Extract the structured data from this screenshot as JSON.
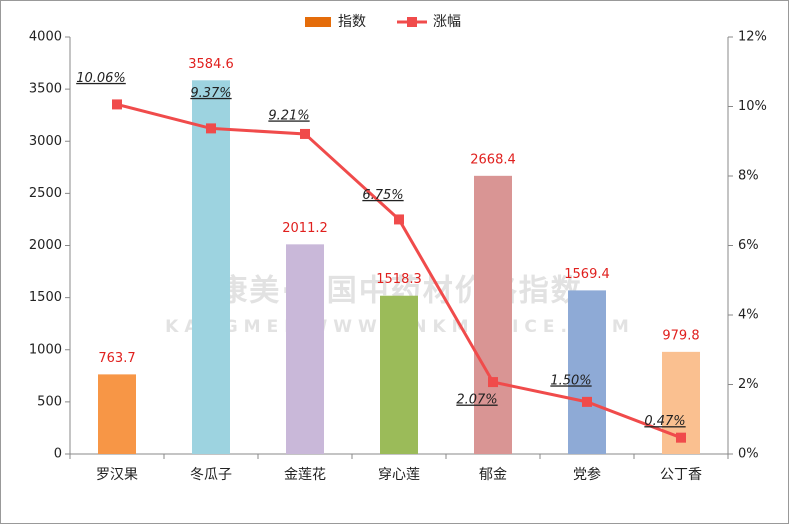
{
  "chart_data": {
    "type": "bar",
    "watermark": [
      "康美·中国中药材价格指数",
      "KANGMEI WWW.CNKMPRICE.COM"
    ],
    "categories": [
      "罗汉果",
      "冬瓜子",
      "金莲花",
      "穿心莲",
      "郁金",
      "党参",
      "公丁香"
    ],
    "series": [
      {
        "name": "指数",
        "type": "bar",
        "color": "#e46c0a",
        "colors": [
          "#f79646",
          "#9dd3e0",
          "#c9b8d9",
          "#9bbb59",
          "#d99594",
          "#8eaad6",
          "#fac090"
        ],
        "values": [
          763.7,
          3584.6,
          2011.2,
          1518.3,
          2668.4,
          1569.4,
          979.8
        ]
      },
      {
        "name": "涨幅",
        "type": "line",
        "axis": "y2",
        "color": "#f04b4b",
        "values": [
          10.06,
          9.37,
          9.21,
          6.75,
          2.07,
          1.5,
          0.47
        ],
        "value_labels": [
          "10.06%",
          "9.37%",
          "9.21%",
          "6.75%",
          "2.07%",
          "1.50%",
          "0.47%"
        ]
      }
    ],
    "ylim": [
      0,
      4000
    ],
    "yticks": [
      0,
      500,
      1000,
      1500,
      2000,
      2500,
      3000,
      3500,
      4000
    ],
    "y2lim": [
      0,
      12
    ],
    "y2ticks": [
      {
        "value": 0,
        "label": "0%"
      },
      {
        "value": 2,
        "label": "2%"
      },
      {
        "value": 4,
        "label": "4%"
      },
      {
        "value": 6,
        "label": "6%"
      },
      {
        "value": 8,
        "label": "8%"
      },
      {
        "value": 10,
        "label": "10%"
      },
      {
        "value": 12,
        "label": "12%"
      }
    ],
    "grid": false,
    "legend": "top"
  }
}
